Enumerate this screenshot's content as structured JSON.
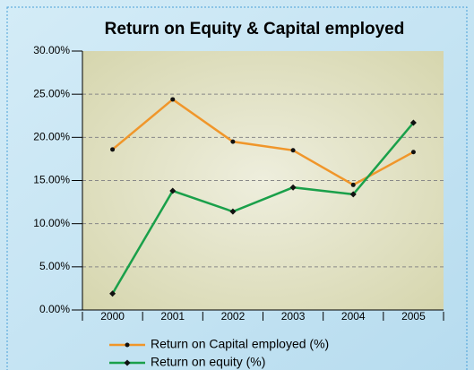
{
  "chart_data": {
    "type": "line",
    "title": "Return on Equity & Capital employed",
    "categories": [
      "2000",
      "2001",
      "2002",
      "2003",
      "2004",
      "2005"
    ],
    "series": [
      {
        "name": "Return on Capital employed (%)",
        "color": "#f0962a",
        "values": [
          18.6,
          24.4,
          19.5,
          18.5,
          14.5,
          18.3
        ]
      },
      {
        "name": "Return on equity (%)",
        "color": "#1aa04a",
        "values": [
          1.9,
          13.8,
          11.4,
          14.2,
          13.4,
          21.7
        ]
      }
    ],
    "ylim": [
      0,
      30
    ],
    "yticks": [
      {
        "value": 0,
        "label": "0.00%"
      },
      {
        "value": 5,
        "label": "5.00%"
      },
      {
        "value": 10,
        "label": "10.00%"
      },
      {
        "value": 15,
        "label": "15.00%"
      },
      {
        "value": 20,
        "label": "20.00%"
      },
      {
        "value": 25,
        "label": "25.00%"
      },
      {
        "value": 30,
        "label": "30.00%"
      }
    ],
    "grid": true,
    "legend": "bottom"
  }
}
